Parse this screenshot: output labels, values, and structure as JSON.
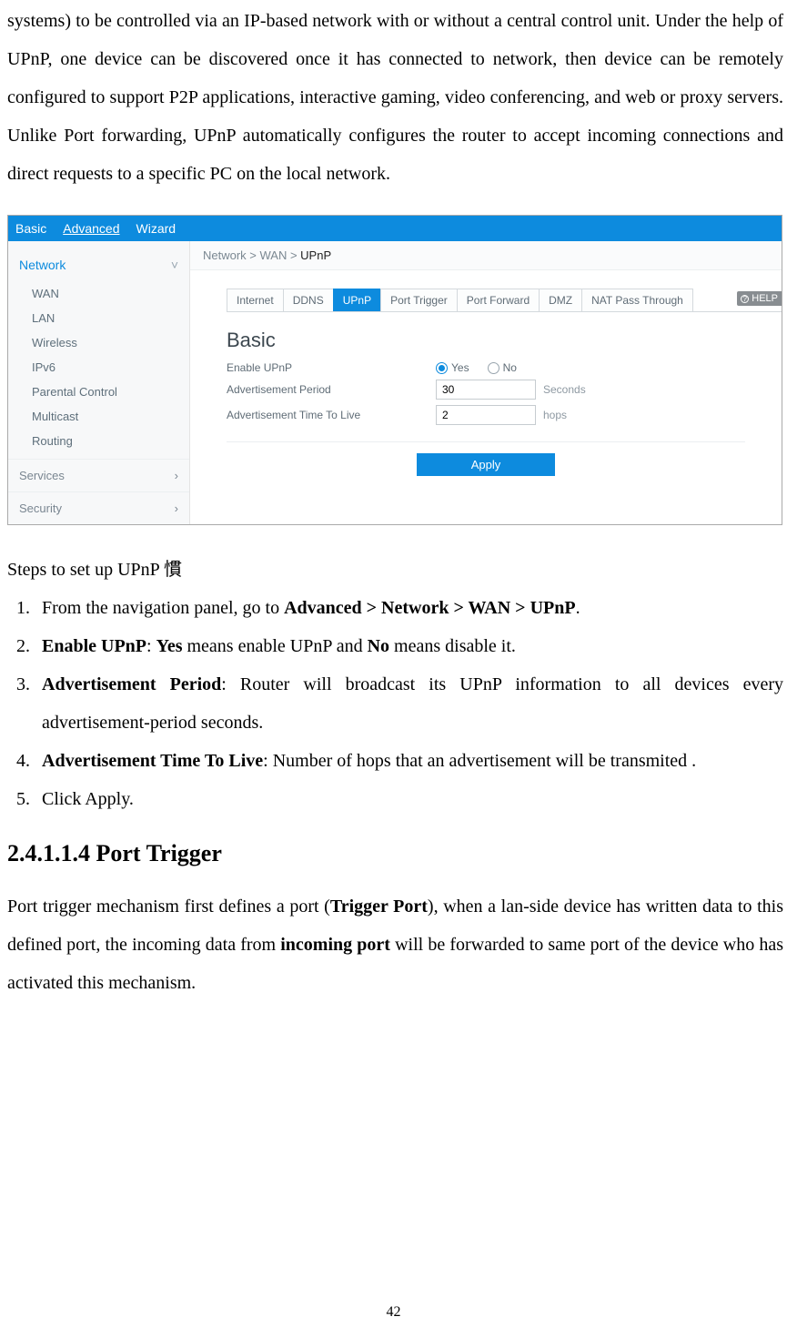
{
  "intro_paragraph": "systems) to be controlled via an IP-based network with or without a central control unit. Under the help of UPnP, one device can be discovered once it has connected to network, then device can be remotely configured to support P2P applications, interactive gaming, video conferencing, and web or proxy servers. Unlike Port forwarding, UPnP automatically configures the router to accept incoming connections and direct requests to a specific PC on the local network.",
  "screenshot": {
    "colors": {
      "primary": "#0d8bde",
      "sidebar_bg": "#f7f8f9",
      "text_muted": "#5f6c76"
    },
    "top_tabs": {
      "basic": "Basic",
      "advanced": "Advanced",
      "wizard": "Wizard"
    },
    "sidebar": {
      "network": "Network",
      "items": [
        "WAN",
        "LAN",
        "Wireless",
        "IPv6",
        "Parental Control",
        "Multicast",
        "Routing"
      ],
      "services": "Services",
      "security": "Security"
    },
    "breadcrumb": {
      "prefix": "Network > WAN > ",
      "current": "UPnP"
    },
    "inner_tabs": [
      "Internet",
      "DDNS",
      "UPnP",
      "Port Trigger",
      "Port Forward",
      "DMZ",
      "NAT Pass Through"
    ],
    "help_label": "HELP",
    "panel_title": "Basic",
    "form": {
      "enable_label": "Enable UPnP",
      "yes": "Yes",
      "no": "No",
      "period_label": "Advertisement Period",
      "period_value": "30",
      "period_unit": "Seconds",
      "ttl_label": "Advertisement Time To Live",
      "ttl_value": "2",
      "ttl_unit": "hops",
      "apply": "Apply"
    }
  },
  "steps_intro": "Steps to set up UPnP 慣",
  "steps": {
    "s1a": "From the navigation panel, go to ",
    "s1b": "Advanced > Network > WAN > UPnP",
    "s1c": ".",
    "s2a": "Enable UPnP",
    "s2b": ": ",
    "s2c": "Yes",
    "s2d": " means enable UPnP and ",
    "s2e": "No",
    "s2f": " means disable it.",
    "s3a": "Advertisement Period",
    "s3b": ": Router will broadcast its UPnP information to all devices every advertisement-period seconds.",
    "s4a": "Advertisement Time To Live",
    "s4b": ": Number of hops that an advertisement will be transmited .",
    "s5": "Click Apply."
  },
  "section_heading": "2.4.1.1.4 Port Trigger",
  "closing": {
    "a": "Port trigger mechanism first defines a port (",
    "b": "Trigger Port",
    "c": "), when a lan-side device has written data to this defined port, the incoming data from ",
    "d": "incoming port",
    "e": " will be forwarded to same port of the device who has activated this mechanism."
  },
  "page_number": "42"
}
